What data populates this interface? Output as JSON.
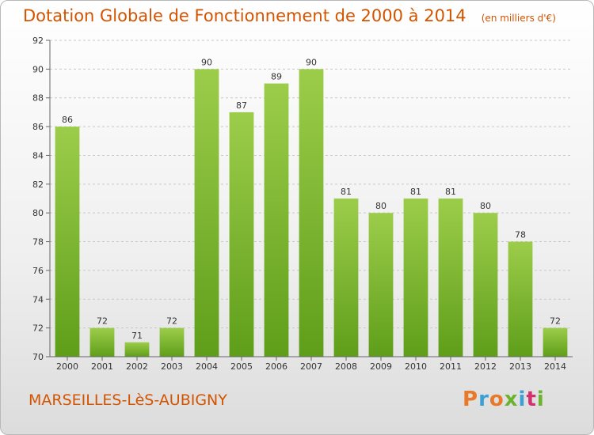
{
  "header": {
    "title": "Dotation Globale de Fonctionnement de 2000 à 2014",
    "unit_note": "(en milliers d'€)"
  },
  "footer": {
    "commune": "MARSEILLES-LèS-AUBIGNY",
    "logo_text": "Proxiti"
  },
  "colors": {
    "accent": "#d35400",
    "bar_light": "#9ccd4a",
    "bar_dark": "#5f9e1a",
    "logo": [
      "#e8782a",
      "#3aa0d8",
      "#e8782a",
      "#6ab42d",
      "#3aa0d8",
      "#d42f6f",
      "#6ab42d"
    ]
  },
  "chart_data": {
    "type": "bar",
    "categories": [
      "2000",
      "2001",
      "2002",
      "2003",
      "2004",
      "2005",
      "2006",
      "2007",
      "2008",
      "2009",
      "2010",
      "2011",
      "2012",
      "2013",
      "2014"
    ],
    "values": [
      86,
      72,
      71,
      72,
      90,
      87,
      89,
      90,
      81,
      80,
      81,
      81,
      80,
      78,
      72
    ],
    "ylim": [
      70,
      92
    ],
    "yticks": [
      70,
      72,
      74,
      76,
      78,
      80,
      82,
      84,
      86,
      88,
      90,
      92
    ],
    "grid": true,
    "xlabel": "",
    "ylabel": ""
  }
}
